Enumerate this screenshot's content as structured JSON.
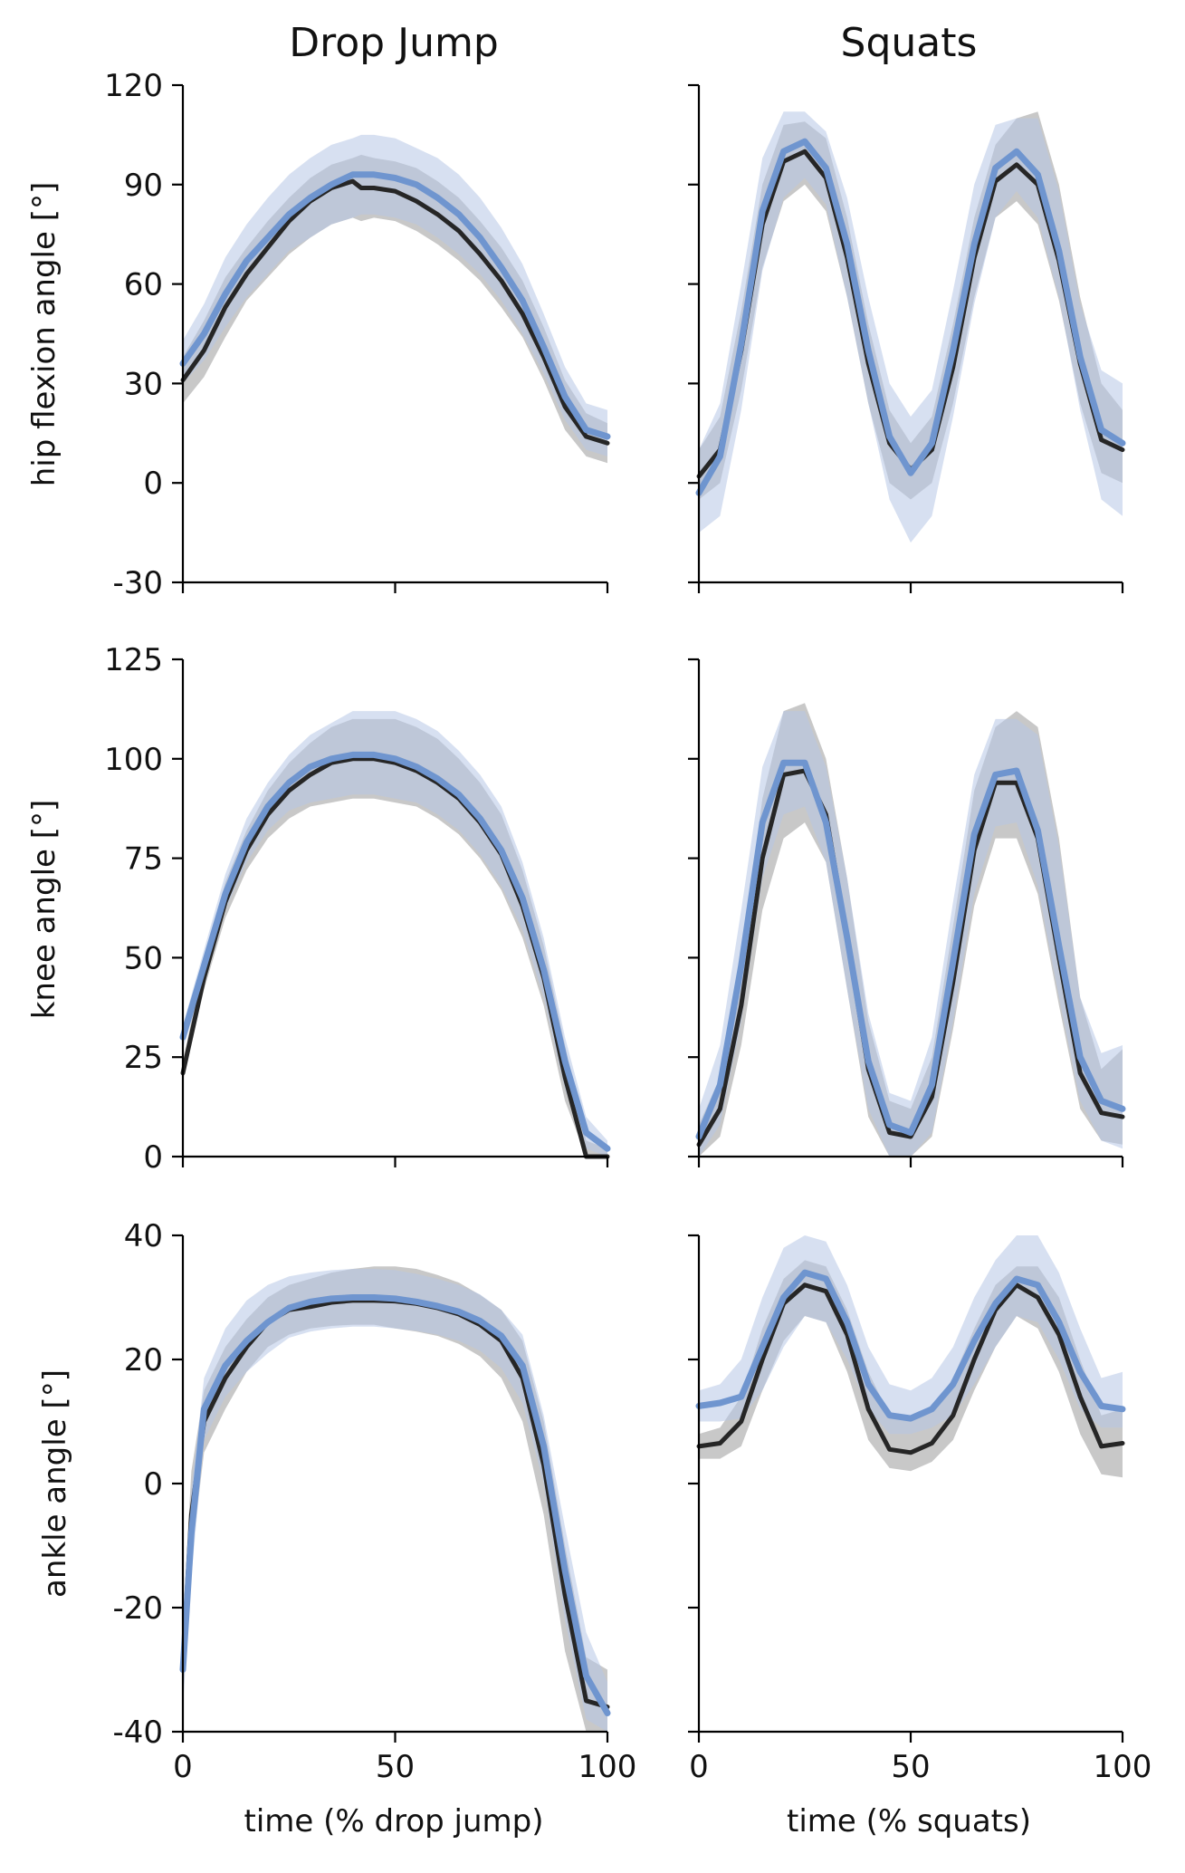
{
  "figure": {
    "columns": [
      {
        "title": "Drop Jump",
        "xlabel": "time (% drop jump)"
      },
      {
        "title": "Squats",
        "xlabel": "time (% squats)"
      }
    ],
    "rows": [
      {
        "ylabel": "hip flexion angle [°]"
      },
      {
        "ylabel": "knee angle [°]"
      },
      {
        "ylabel": "ankle angle [°]"
      }
    ]
  },
  "colors": {
    "black_line": "#262626",
    "black_band": "#9a9a9a",
    "blue_line": "#6f95cf",
    "blue_band": "#b7c6e6"
  },
  "chart_data": [
    {
      "type": "line",
      "panel": "hip-dropjump",
      "title": "Drop Jump",
      "xlabel": "",
      "ylabel": "hip flexion angle [°]",
      "xlim": [
        0,
        100
      ],
      "ylim": [
        -30,
        120
      ],
      "xticks": [
        "0",
        "50",
        "100"
      ],
      "yticks": [
        "-30",
        "0",
        "30",
        "60",
        "90",
        "120"
      ],
      "x": [
        0,
        5,
        10,
        15,
        20,
        25,
        30,
        35,
        40,
        42,
        45,
        50,
        55,
        60,
        65,
        70,
        75,
        80,
        85,
        90,
        95,
        100
      ],
      "series": [
        {
          "values": [
            31,
            40,
            53,
            63,
            71,
            79,
            85,
            89,
            91,
            89,
            89,
            88,
            85,
            81,
            76,
            69,
            61,
            51,
            38,
            23,
            14,
            12
          ],
          "lower": [
            24,
            32,
            44,
            55,
            62,
            69,
            74,
            78,
            80,
            79,
            80,
            79,
            76,
            72,
            67,
            61,
            53,
            44,
            31,
            16,
            8,
            6
          ],
          "upper": [
            38,
            49,
            62,
            71,
            79,
            86,
            92,
            96,
            98,
            99,
            98,
            97,
            95,
            91,
            86,
            79,
            71,
            61,
            47,
            31,
            21,
            18
          ]
        },
        {
          "values": [
            36,
            45,
            57,
            67,
            74,
            81,
            86,
            90,
            93,
            93,
            93,
            92,
            90,
            86,
            81,
            74,
            65,
            55,
            41,
            26,
            16,
            14
          ],
          "lower": [
            30,
            37,
            47,
            56,
            63,
            70,
            74,
            78,
            80,
            81,
            81,
            80,
            78,
            74,
            69,
            63,
            55,
            45,
            33,
            19,
            10,
            8
          ],
          "upper": [
            43,
            54,
            68,
            78,
            86,
            93,
            98,
            102,
            104,
            105,
            105,
            104,
            101,
            98,
            93,
            86,
            77,
            66,
            51,
            35,
            24,
            22
          ]
        }
      ]
    },
    {
      "type": "line",
      "panel": "hip-squats",
      "title": "Squats",
      "xlabel": "",
      "ylabel": "",
      "xlim": [
        0,
        100
      ],
      "ylim": [
        -30,
        120
      ],
      "xticks": [
        "0",
        "50",
        "100"
      ],
      "yticks": [
        "-30",
        "0",
        "30",
        "60",
        "90",
        "120"
      ],
      "x": [
        0,
        5,
        10,
        15,
        20,
        25,
        30,
        35,
        40,
        45,
        50,
        55,
        60,
        65,
        70,
        75,
        80,
        85,
        90,
        95,
        100
      ],
      "series": [
        {
          "values": [
            2,
            10,
            40,
            78,
            97,
            100,
            92,
            68,
            36,
            12,
            4,
            10,
            35,
            68,
            91,
            96,
            90,
            67,
            36,
            13,
            10
          ],
          "lower": [
            -5,
            0,
            28,
            65,
            85,
            90,
            82,
            56,
            24,
            0,
            -5,
            0,
            24,
            56,
            80,
            85,
            78,
            55,
            24,
            3,
            0
          ],
          "upper": [
            10,
            20,
            52,
            90,
            108,
            109,
            104,
            80,
            48,
            22,
            12,
            20,
            48,
            80,
            102,
            110,
            112,
            90,
            56,
            30,
            22
          ]
        },
        {
          "values": [
            -3,
            8,
            42,
            82,
            100,
            103,
            95,
            72,
            40,
            14,
            3,
            12,
            40,
            72,
            95,
            100,
            93,
            70,
            38,
            16,
            12
          ],
          "lower": [
            -15,
            -10,
            22,
            64,
            86,
            92,
            84,
            56,
            24,
            -5,
            -18,
            -10,
            20,
            54,
            80,
            88,
            80,
            56,
            22,
            -5,
            -10
          ],
          "upper": [
            10,
            24,
            60,
            98,
            112,
            112,
            106,
            86,
            56,
            30,
            20,
            28,
            58,
            90,
            108,
            110,
            110,
            88,
            54,
            34,
            30
          ]
        }
      ]
    },
    {
      "type": "line",
      "panel": "knee-dropjump",
      "title": "",
      "xlabel": "",
      "ylabel": "knee angle [°]",
      "xlim": [
        0,
        100
      ],
      "ylim": [
        0,
        125
      ],
      "xticks": [
        "0",
        "50",
        "100"
      ],
      "yticks": [
        "0",
        "25",
        "50",
        "75",
        "100",
        "125"
      ],
      "x": [
        0,
        5,
        10,
        15,
        20,
        25,
        30,
        35,
        40,
        45,
        50,
        55,
        60,
        65,
        70,
        75,
        80,
        85,
        90,
        95,
        100
      ],
      "series": [
        {
          "values": [
            21,
            45,
            64,
            77,
            86,
            92,
            96,
            99,
            100,
            100,
            99,
            97,
            94,
            90,
            84,
            76,
            63,
            45,
            20,
            0,
            0
          ],
          "lower": [
            19,
            42,
            60,
            72,
            80,
            85,
            88,
            89,
            90,
            90,
            89,
            88,
            85,
            81,
            75,
            67,
            55,
            38,
            14,
            0,
            0
          ],
          "upper": [
            24,
            49,
            69,
            82,
            92,
            99,
            104,
            108,
            110,
            110,
            110,
            108,
            105,
            100,
            94,
            86,
            72,
            53,
            28,
            4,
            2
          ]
        },
        {
          "values": [
            30,
            48,
            66,
            79,
            88,
            94,
            98,
            100,
            101,
            101,
            100,
            98,
            95,
            91,
            85,
            77,
            65,
            47,
            24,
            6,
            2
          ],
          "lower": [
            27,
            44,
            62,
            74,
            82,
            87,
            89,
            90,
            91,
            91,
            90,
            89,
            86,
            82,
            76,
            68,
            57,
            40,
            17,
            2,
            0
          ],
          "upper": [
            33,
            52,
            71,
            85,
            94,
            101,
            106,
            109,
            112,
            112,
            112,
            110,
            107,
            102,
            96,
            88,
            74,
            55,
            30,
            10,
            4
          ]
        }
      ]
    },
    {
      "type": "line",
      "panel": "knee-squats",
      "title": "",
      "xlabel": "",
      "ylabel": "",
      "xlim": [
        0,
        100
      ],
      "ylim": [
        0,
        125
      ],
      "xticks": [
        "0",
        "50",
        "100"
      ],
      "yticks": [
        "0",
        "25",
        "50",
        "75",
        "100",
        "125"
      ],
      "x": [
        0,
        5,
        10,
        15,
        20,
        25,
        30,
        35,
        40,
        45,
        50,
        55,
        60,
        65,
        70,
        75,
        80,
        85,
        90,
        95,
        100
      ],
      "series": [
        {
          "values": [
            3,
            12,
            38,
            75,
            96,
            97,
            86,
            55,
            22,
            6,
            5,
            15,
            44,
            77,
            94,
            94,
            80,
            50,
            21,
            11,
            10
          ],
          "lower": [
            0,
            5,
            28,
            62,
            80,
            84,
            74,
            42,
            10,
            0,
            0,
            5,
            32,
            63,
            80,
            80,
            66,
            38,
            12,
            4,
            3
          ],
          "upper": [
            8,
            20,
            50,
            90,
            112,
            114,
            100,
            70,
            34,
            14,
            12,
            25,
            58,
            92,
            108,
            112,
            108,
            80,
            40,
            22,
            27
          ]
        },
        {
          "values": [
            5,
            18,
            48,
            84,
            99,
            99,
            84,
            55,
            24,
            8,
            6,
            18,
            49,
            81,
            96,
            97,
            82,
            53,
            25,
            14,
            12
          ],
          "lower": [
            0,
            8,
            34,
            70,
            86,
            88,
            74,
            42,
            12,
            0,
            0,
            6,
            34,
            66,
            83,
            84,
            68,
            40,
            14,
            4,
            2
          ],
          "upper": [
            12,
            28,
            62,
            98,
            112,
            112,
            98,
            70,
            36,
            16,
            14,
            30,
            64,
            96,
            110,
            110,
            106,
            78,
            40,
            26,
            28
          ]
        }
      ]
    },
    {
      "type": "line",
      "panel": "ankle-dropjump",
      "title": "",
      "xlabel": "time (% drop jump)",
      "ylabel": "ankle angle [°]",
      "xlim": [
        0,
        100
      ],
      "ylim": [
        -40,
        40
      ],
      "xticks": [
        "0",
        "50",
        "100"
      ],
      "yticks": [
        "-40",
        "-20",
        "0",
        "20",
        "40"
      ],
      "x": [
        0,
        2,
        5,
        10,
        15,
        20,
        25,
        30,
        35,
        40,
        45,
        50,
        55,
        60,
        65,
        70,
        75,
        80,
        85,
        90,
        95,
        100
      ],
      "series": [
        {
          "values": [
            -29,
            -5,
            10,
            17,
            22,
            26,
            28,
            28.5,
            29.2,
            29.5,
            29.5,
            29.4,
            29,
            28.3,
            27.3,
            25.6,
            23,
            17,
            3,
            -18,
            -35,
            -36
          ],
          "lower": [
            -35,
            -12,
            5,
            12,
            18,
            22,
            24,
            25,
            25.4,
            25.6,
            25.6,
            25,
            24.5,
            23.8,
            22.5,
            20.5,
            17,
            10,
            -5,
            -27,
            -40,
            -40
          ],
          "upper": [
            -22,
            2,
            15,
            22,
            26.5,
            30,
            32,
            33,
            34,
            34.6,
            35,
            35,
            34.6,
            33.6,
            32.4,
            30.4,
            28,
            23,
            10,
            -10,
            -28,
            -30
          ]
        },
        {
          "values": [
            -30,
            -8,
            12,
            19,
            23,
            26,
            28.3,
            29.3,
            29.8,
            30,
            30,
            29.8,
            29.3,
            28.6,
            27.7,
            26.2,
            23.8,
            19,
            6,
            -14,
            -31,
            -37
          ],
          "lower": [
            -36,
            -15,
            7,
            14,
            18,
            21,
            23.5,
            24.5,
            25,
            25.3,
            25.3,
            25,
            24.6,
            24,
            23,
            21.4,
            18.6,
            13,
            0,
            -22,
            -38,
            -40
          ],
          "upper": [
            -23,
            -1,
            17,
            25,
            29.5,
            32,
            33.4,
            34,
            34.4,
            34.6,
            34.6,
            34.4,
            33.8,
            33,
            32,
            30.5,
            28,
            24,
            11,
            -7,
            -24,
            -32
          ]
        }
      ]
    },
    {
      "type": "line",
      "panel": "ankle-squats",
      "title": "",
      "xlabel": "time (% squats)",
      "ylabel": "",
      "xlim": [
        0,
        100
      ],
      "ylim": [
        -40,
        40
      ],
      "xticks": [
        "0",
        "50",
        "100"
      ],
      "yticks": [
        "-40",
        "-20",
        "0",
        "20",
        "40"
      ],
      "x": [
        0,
        5,
        10,
        15,
        20,
        25,
        30,
        35,
        40,
        45,
        50,
        55,
        60,
        65,
        70,
        75,
        80,
        85,
        90,
        95,
        100
      ],
      "series": [
        {
          "values": [
            6,
            6.5,
            10,
            20,
            29,
            32,
            31,
            24,
            12,
            5.5,
            5,
            6.5,
            11,
            20,
            28,
            32,
            30,
            24,
            14,
            6,
            6.5
          ],
          "lower": [
            4,
            4,
            6,
            15,
            23,
            27,
            26,
            18,
            7,
            2.5,
            2,
            3.5,
            7,
            15,
            22,
            27,
            25,
            18,
            8,
            1.5,
            1
          ],
          "upper": [
            8,
            9,
            14,
            25,
            33,
            36,
            35,
            28,
            18,
            11,
            10,
            12,
            17,
            25,
            32,
            35,
            35,
            30,
            20,
            11,
            12
          ]
        },
        {
          "values": [
            12.5,
            13,
            14,
            22,
            30,
            34,
            33,
            26,
            16,
            11,
            10.5,
            12,
            16,
            23,
            29,
            33,
            32,
            26,
            18,
            12.5,
            12
          ],
          "lower": [
            10,
            10,
            10.5,
            15,
            22,
            27,
            26,
            20,
            12,
            8,
            8,
            9,
            11,
            16,
            22,
            27,
            26,
            20,
            12,
            9,
            9
          ],
          "upper": [
            15,
            16,
            20,
            30,
            38,
            41,
            39,
            32,
            22,
            16,
            15,
            17,
            22,
            30,
            36,
            40,
            40,
            34,
            25,
            17,
            18
          ]
        }
      ]
    }
  ]
}
